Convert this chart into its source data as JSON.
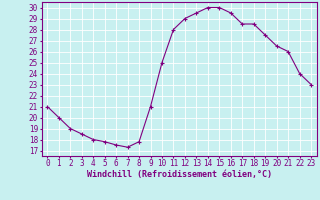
{
  "x": [
    0,
    1,
    2,
    3,
    4,
    5,
    6,
    7,
    8,
    9,
    10,
    11,
    12,
    13,
    14,
    15,
    16,
    17,
    18,
    19,
    20,
    21,
    22,
    23
  ],
  "y": [
    21.0,
    20.0,
    19.0,
    18.5,
    18.0,
    17.8,
    17.5,
    17.3,
    17.8,
    21.0,
    25.0,
    28.0,
    29.0,
    29.5,
    30.0,
    30.0,
    29.5,
    28.5,
    28.5,
    27.5,
    26.5,
    26.0,
    24.0,
    23.0
  ],
  "line_color": "#800080",
  "bg_color": "#c8f0f0",
  "grid_color": "#ffffff",
  "ylabel_ticks": [
    17,
    18,
    19,
    20,
    21,
    22,
    23,
    24,
    25,
    26,
    27,
    28,
    29,
    30
  ],
  "xlabel": "Windchill (Refroidissement éolien,°C)",
  "xlim": [
    -0.5,
    23.5
  ],
  "ylim": [
    16.5,
    30.5
  ],
  "tick_color": "#800080",
  "font_color": "#800080",
  "font_size": 5.5
}
